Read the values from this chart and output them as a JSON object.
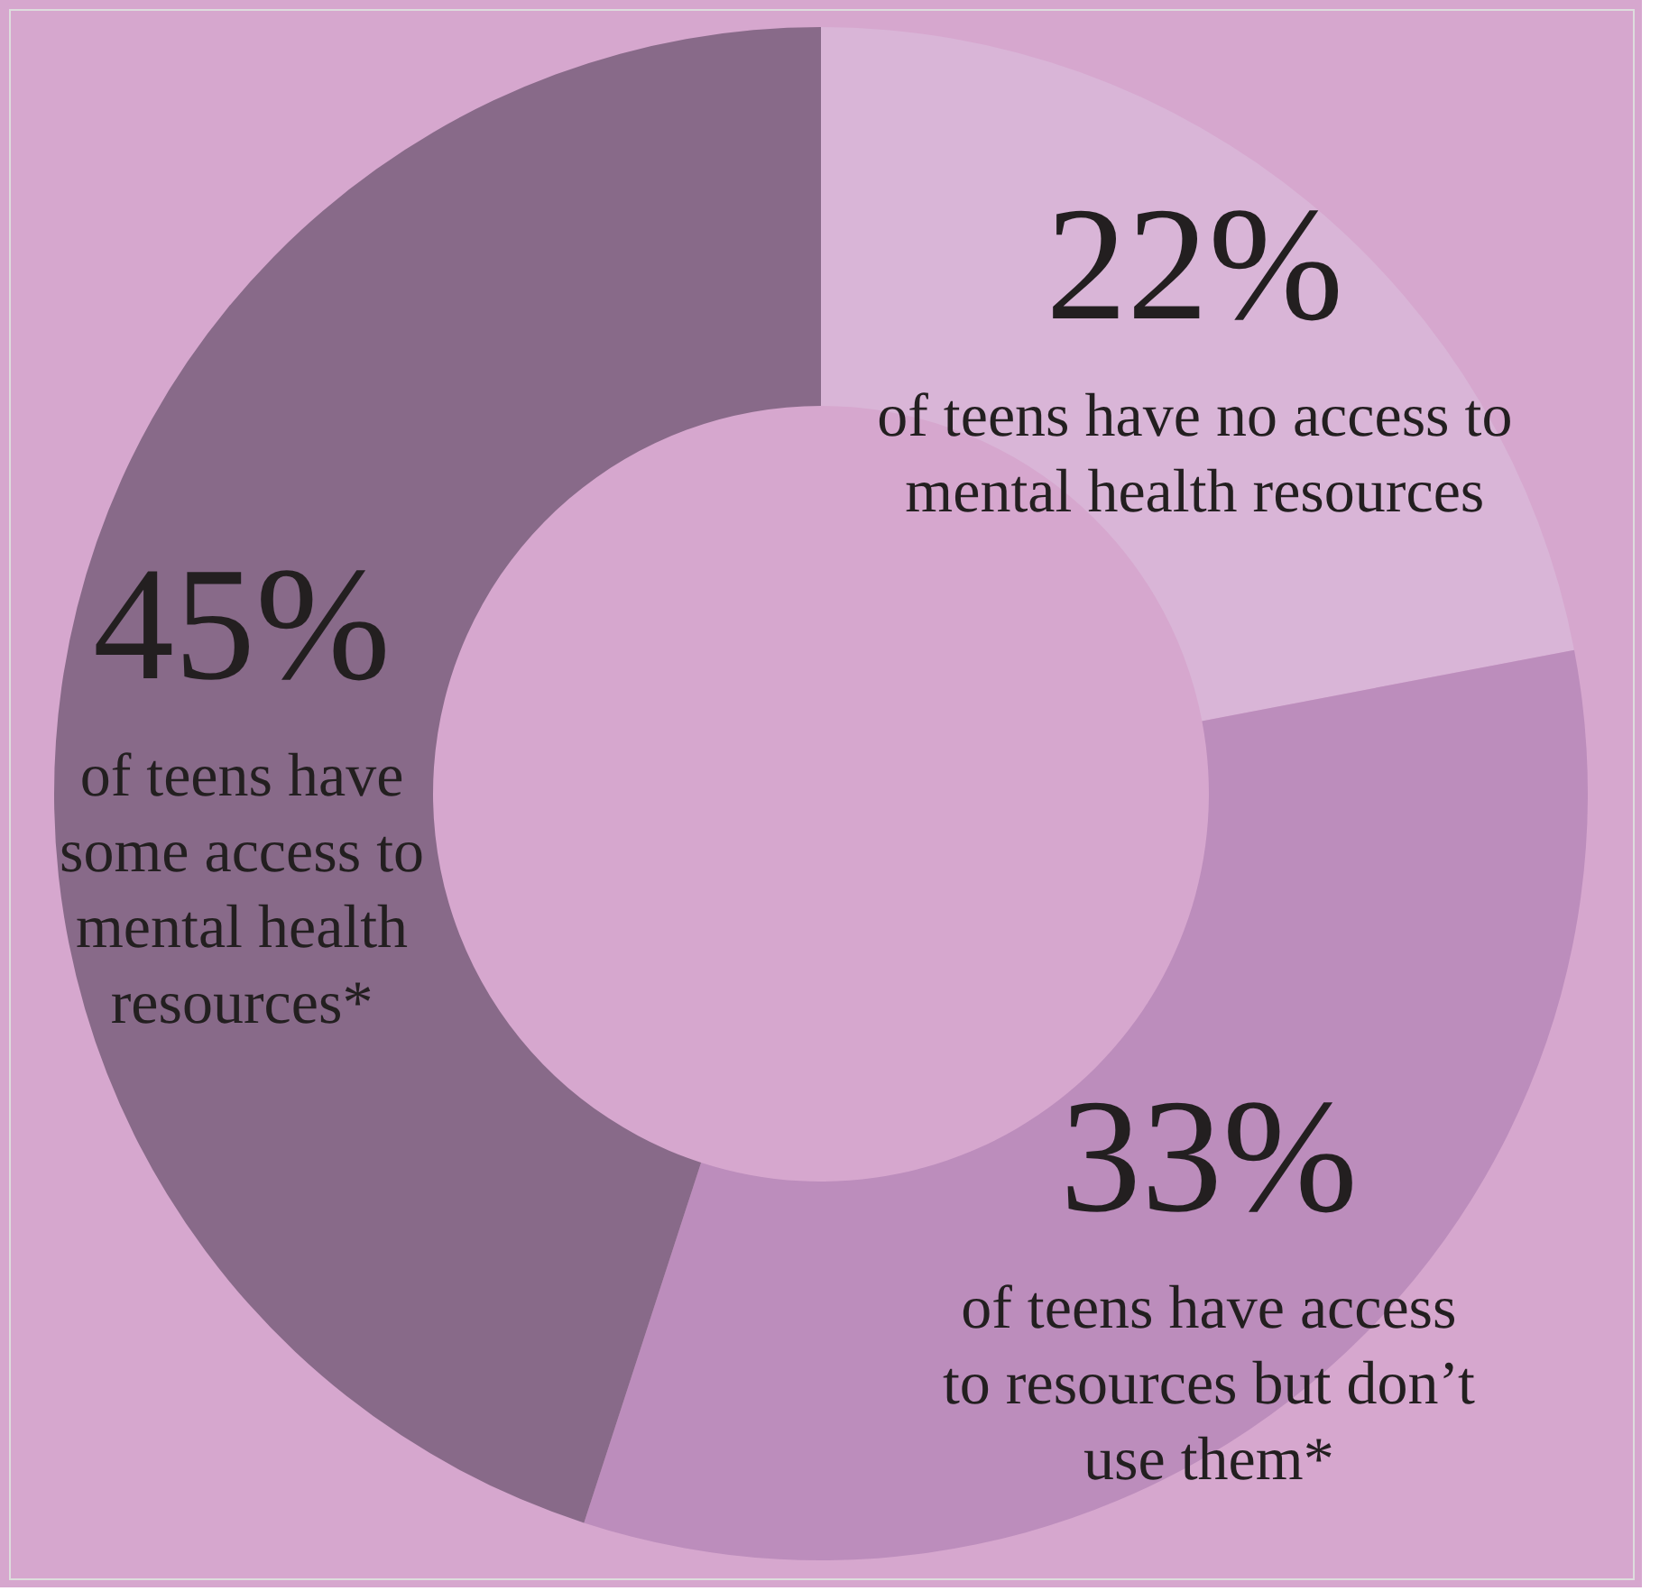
{
  "chart_data": {
    "type": "donut",
    "categories": [
      "of teens have no access to mental health resources",
      "of teens have access to resources but don’t use them*",
      "of teens have some access to mental health resources*"
    ],
    "values": [
      22,
      33,
      45
    ],
    "colors": [
      "#d9b5d7",
      "#bc8dbc",
      "#886a89"
    ],
    "value_labels": [
      "22%",
      "33%",
      "45%"
    ],
    "legend": false
  }
}
